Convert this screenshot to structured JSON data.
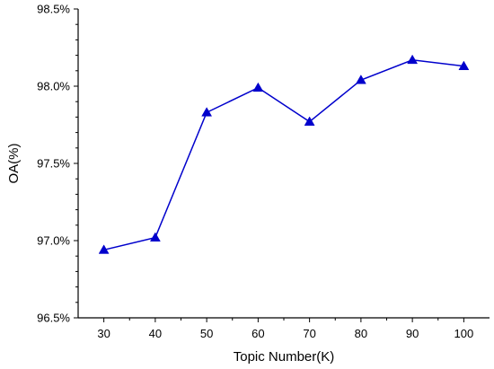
{
  "chart_data": {
    "type": "line",
    "title": "",
    "xlabel": "Topic Number(K)",
    "ylabel": "OA(%)",
    "x": [
      30,
      40,
      50,
      60,
      70,
      80,
      90,
      100
    ],
    "series": [
      {
        "values": [
          96.94,
          97.02,
          97.83,
          97.99,
          97.77,
          98.04,
          98.17,
          98.13
        ],
        "color": "#0000cc",
        "marker": "triangle"
      }
    ],
    "xlim": [
      25,
      105
    ],
    "ylim": [
      96.5,
      98.5
    ],
    "x_ticks": [
      30,
      40,
      50,
      60,
      70,
      80,
      90,
      100
    ],
    "x_tick_labels": [
      "30",
      "40",
      "50",
      "60",
      "70",
      "80",
      "90",
      "100"
    ],
    "y_ticks": [
      96.5,
      97.0,
      97.5,
      98.0,
      98.5
    ],
    "y_tick_labels": [
      "96.5%",
      "97.0%",
      "97.5%",
      "98.0%",
      "98.5%"
    ],
    "grid": false,
    "legend": "none"
  }
}
